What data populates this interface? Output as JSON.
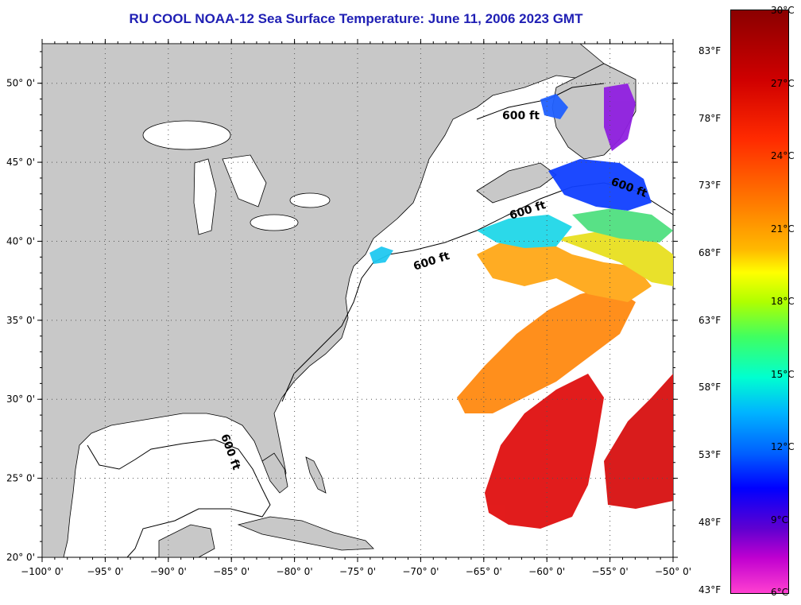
{
  "title": "RU COOL  NOAA-12  Sea Surface Temperature:  June 11, 2006 2023 GMT",
  "map": {
    "lon_range": [
      -100,
      -50
    ],
    "lat_range": [
      20,
      52.5
    ],
    "longitude_labels": [
      "−100° 0'",
      "−95° 0'",
      "−90° 0'",
      "−85° 0'",
      "−80° 0'",
      "−75° 0'",
      "−70° 0'",
      "−65° 0'",
      "−60° 0'",
      "−55° 0'",
      "−50° 0'"
    ],
    "latitude_labels": [
      "50° 0'",
      "45° 0'",
      "40° 0'",
      "35° 0'",
      "30° 0'",
      "25° 0'",
      "20° 0'"
    ],
    "grid": "dotted",
    "contour_labels": [
      "600 ft",
      "600 ft",
      "600 ft",
      "600 ft",
      "600 ft"
    ],
    "colors": {
      "land": "#c8c8c8",
      "ocean": "#ffffff",
      "title": "#1f1fb4"
    }
  },
  "colorbar": {
    "celsius": [
      "30°C",
      "27°C",
      "24°C",
      "21°C",
      "18°C",
      "15°C",
      "12°C",
      "9°C",
      "6°C"
    ],
    "fahrenheit": [
      "83°F",
      "78°F",
      "73°F",
      "68°F",
      "63°F",
      "58°F",
      "53°F",
      "48°F",
      "43°F"
    ],
    "range_c": [
      6,
      30
    ]
  }
}
